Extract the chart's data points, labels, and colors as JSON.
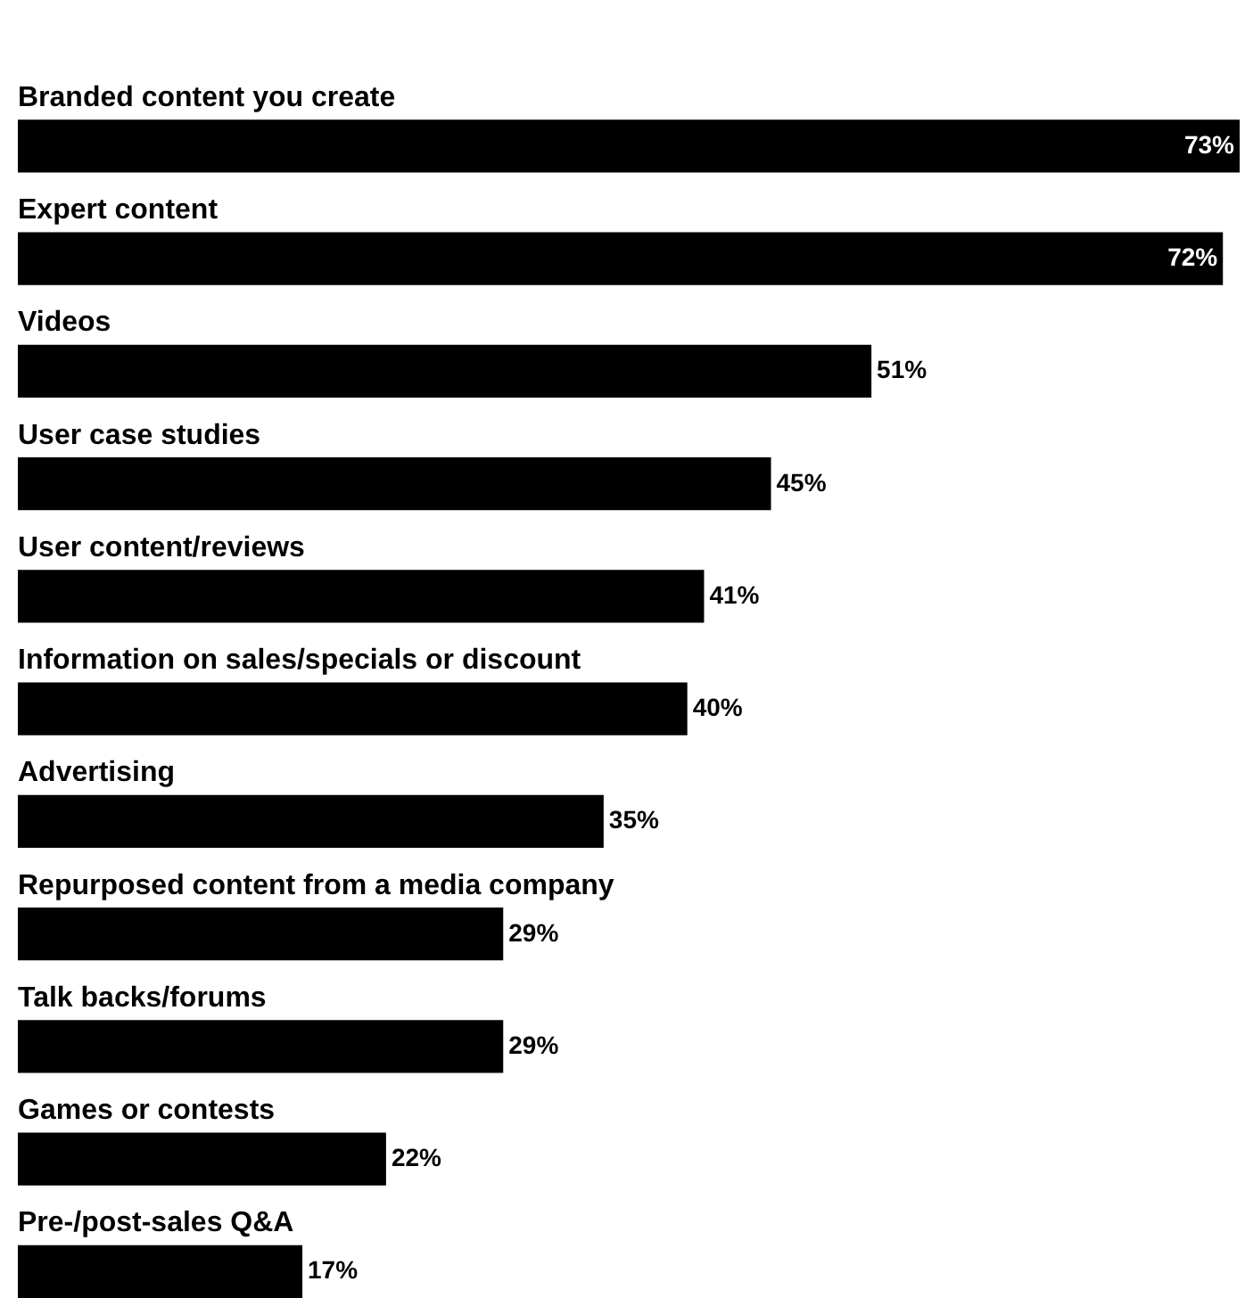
{
  "chart_data": {
    "type": "bar",
    "orientation": "horizontal",
    "categories": [
      "Branded content you create",
      "Expert content",
      "Videos",
      "User case studies",
      "User content/reviews",
      "Information on sales/specials or discount",
      "Advertising",
      "Repurposed content from a media company",
      "Talk backs/forums",
      "Games or contests",
      "Pre-/post-sales Q&A"
    ],
    "values": [
      73,
      72,
      51,
      45,
      41,
      40,
      35,
      29,
      29,
      22,
      17
    ],
    "value_labels": [
      "73%",
      "72%",
      "51%",
      "45%",
      "41%",
      "40%",
      "35%",
      "29%",
      "29%",
      "22%",
      "17%"
    ],
    "color": "#000000"
  }
}
